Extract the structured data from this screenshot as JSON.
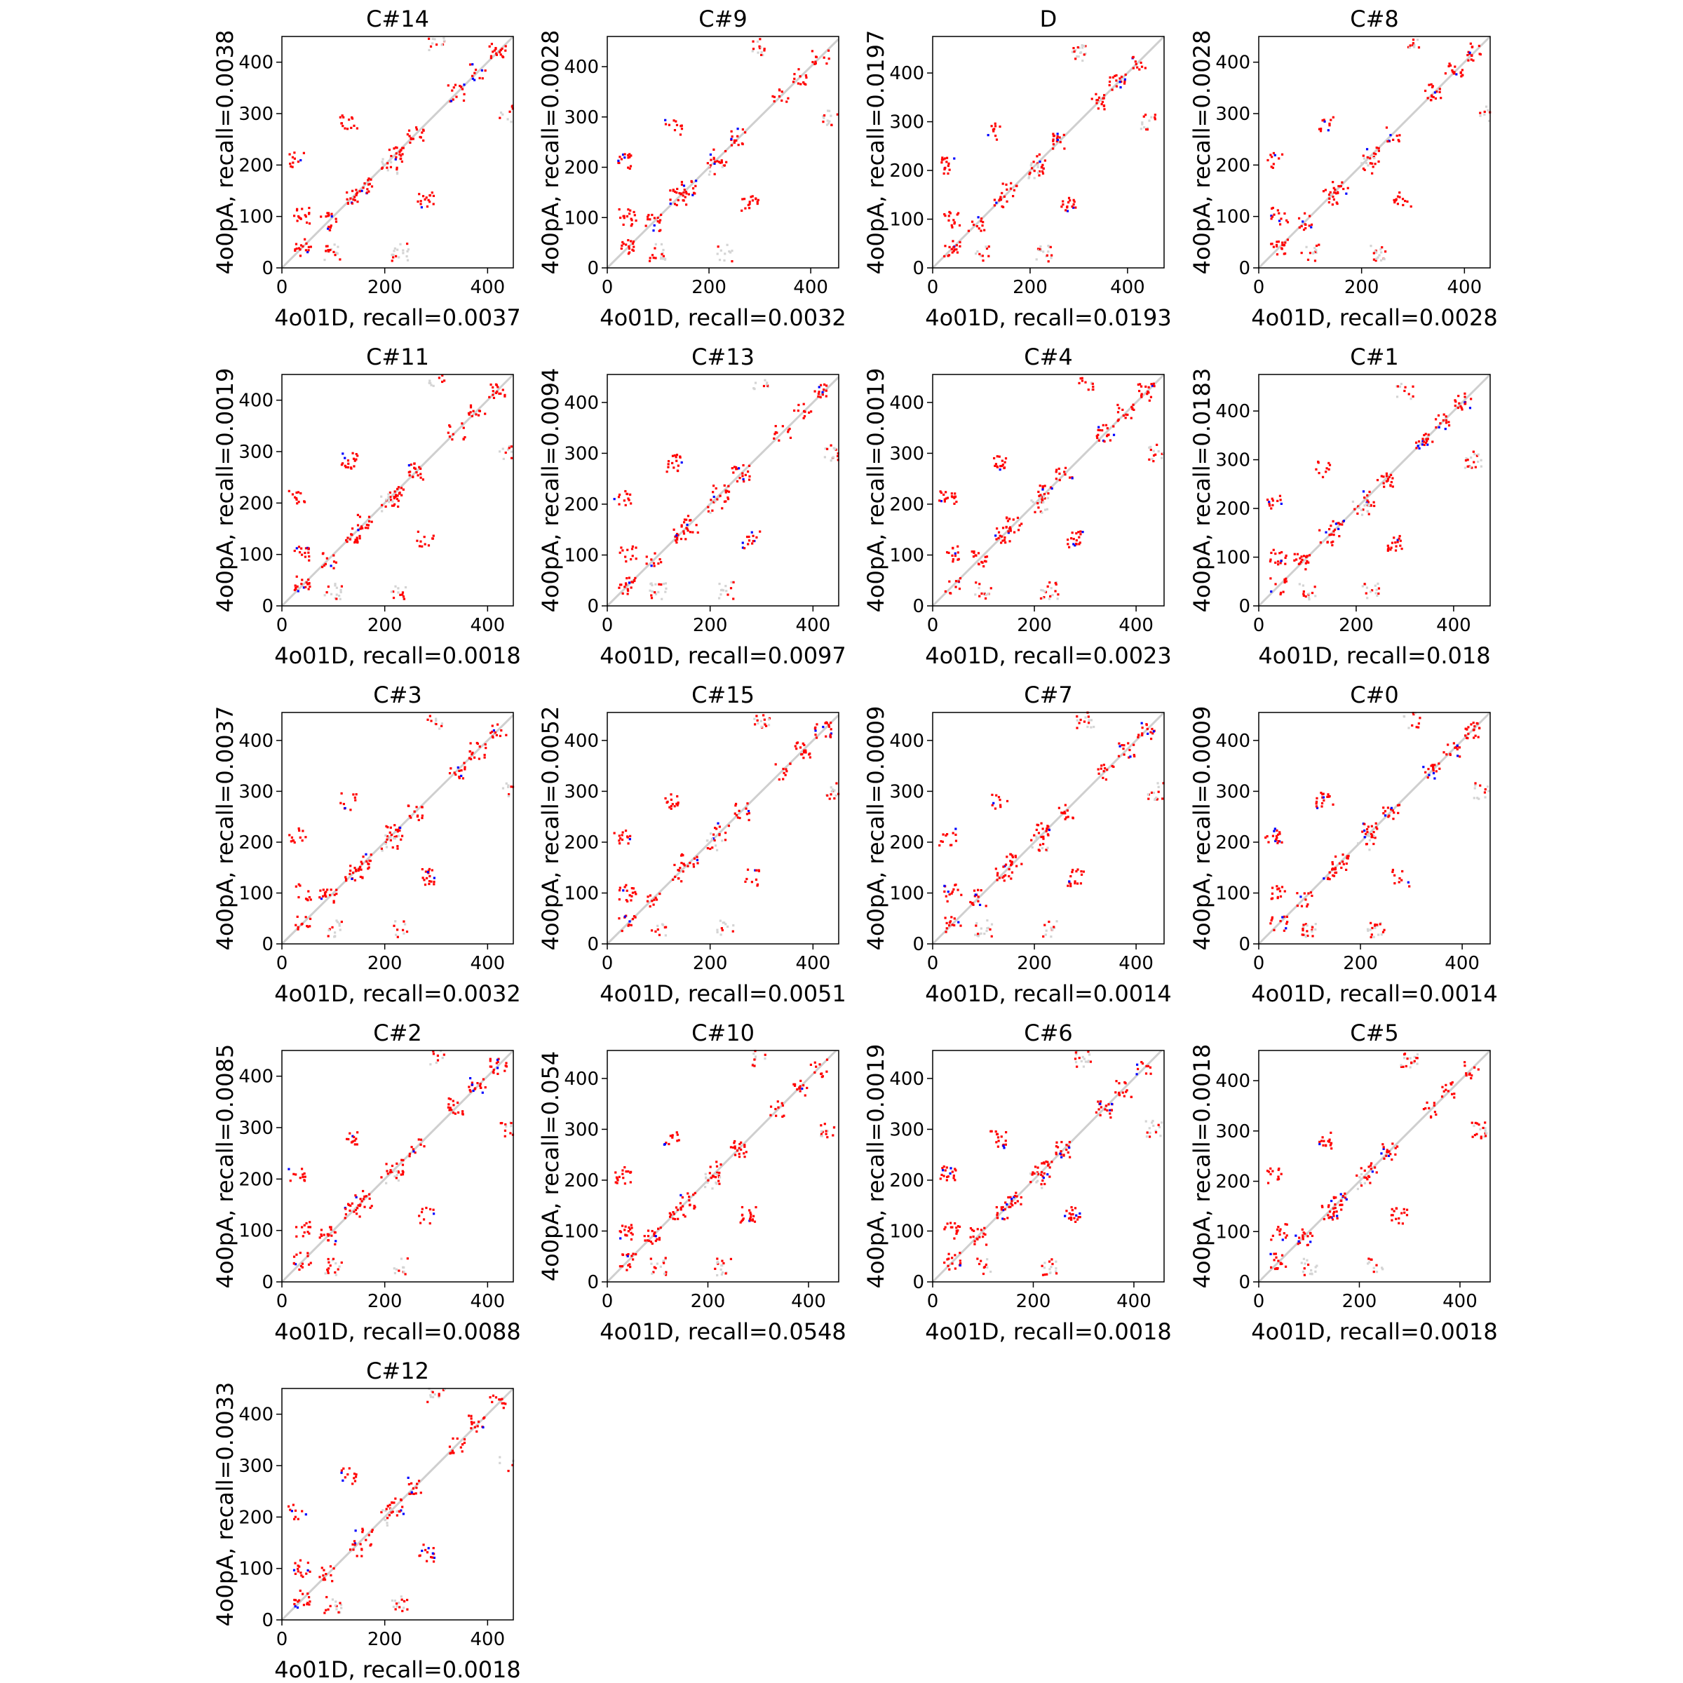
{
  "chart_data": [
    {
      "type": "scatter",
      "title": "C#14",
      "xlabel": "4o01D, recall=0.0037",
      "ylabel": "4o0pA, recall=0.0038",
      "xlim": [
        0,
        450
      ],
      "ylim": [
        0,
        450
      ],
      "xticks": [
        0,
        200,
        400
      ],
      "yticks": [
        0,
        100,
        200,
        300,
        400
      ],
      "grid": false
    },
    {
      "type": "scatter",
      "title": "C#9",
      "xlabel": "4o01D, recall=0.0032",
      "ylabel": "4o0pA, recall=0.0028",
      "xlim": [
        0,
        455
      ],
      "ylim": [
        0,
        460
      ],
      "xticks": [
        0,
        200,
        400
      ],
      "yticks": [
        0,
        100,
        200,
        300,
        400
      ],
      "grid": false
    },
    {
      "type": "scatter",
      "title": "D",
      "xlabel": "4o01D, recall=0.0193",
      "ylabel": "4o0pA, recall=0.0197",
      "xlim": [
        0,
        475
      ],
      "ylim": [
        0,
        475
      ],
      "xticks": [
        0,
        200,
        400
      ],
      "yticks": [
        0,
        100,
        200,
        300,
        400
      ],
      "grid": false
    },
    {
      "type": "scatter",
      "title": "C#8",
      "xlabel": "4o01D, recall=0.0028",
      "ylabel": "4o0pA, recall=0.0028",
      "xlim": [
        0,
        450
      ],
      "ylim": [
        0,
        450
      ],
      "xticks": [
        0,
        200,
        400
      ],
      "yticks": [
        0,
        100,
        200,
        300,
        400
      ],
      "grid": false
    },
    {
      "type": "scatter",
      "title": "C#11",
      "xlabel": "4o01D, recall=0.0018",
      "ylabel": "4o0pA, recall=0.0019",
      "xlim": [
        0,
        450
      ],
      "ylim": [
        0,
        450
      ],
      "xticks": [
        0,
        200,
        400
      ],
      "yticks": [
        0,
        100,
        200,
        300,
        400
      ],
      "grid": false
    },
    {
      "type": "scatter",
      "title": "C#13",
      "xlabel": "4o01D, recall=0.0097",
      "ylabel": "4o0pA, recall=0.0094",
      "xlim": [
        0,
        450
      ],
      "ylim": [
        0,
        455
      ],
      "xticks": [
        0,
        200,
        400
      ],
      "yticks": [
        0,
        100,
        200,
        300,
        400
      ],
      "grid": false
    },
    {
      "type": "scatter",
      "title": "C#4",
      "xlabel": "4o01D, recall=0.0023",
      "ylabel": "4o0pA, recall=0.0019",
      "xlim": [
        0,
        455
      ],
      "ylim": [
        0,
        455
      ],
      "xticks": [
        0,
        200,
        400
      ],
      "yticks": [
        0,
        100,
        200,
        300,
        400
      ],
      "grid": false
    },
    {
      "type": "scatter",
      "title": "C#1",
      "xlabel": "4o01D, recall=0.018",
      "ylabel": "4o0pA, recall=0.0183",
      "xlim": [
        0,
        475
      ],
      "ylim": [
        0,
        475
      ],
      "xticks": [
        0,
        200,
        400
      ],
      "yticks": [
        0,
        100,
        200,
        300,
        400
      ],
      "grid": false
    },
    {
      "type": "scatter",
      "title": "C#3",
      "xlabel": "4o01D, recall=0.0032",
      "ylabel": "4o0pA, recall=0.0037",
      "xlim": [
        0,
        450
      ],
      "ylim": [
        0,
        455
      ],
      "xticks": [
        0,
        200,
        400
      ],
      "yticks": [
        0,
        100,
        200,
        300,
        400
      ],
      "grid": false
    },
    {
      "type": "scatter",
      "title": "C#15",
      "xlabel": "4o01D, recall=0.0051",
      "ylabel": "4o0pA, recall=0.0052",
      "xlim": [
        0,
        450
      ],
      "ylim": [
        0,
        455
      ],
      "xticks": [
        0,
        200,
        400
      ],
      "yticks": [
        0,
        100,
        200,
        300,
        400
      ],
      "grid": false
    },
    {
      "type": "scatter",
      "title": "C#7",
      "xlabel": "4o01D, recall=0.0014",
      "ylabel": "4o0pA, recall=0.0009",
      "xlim": [
        0,
        455
      ],
      "ylim": [
        0,
        455
      ],
      "xticks": [
        0,
        200,
        400
      ],
      "yticks": [
        0,
        100,
        200,
        300,
        400
      ],
      "grid": false
    },
    {
      "type": "scatter",
      "title": "C#0",
      "xlabel": "4o01D, recall=0.0014",
      "ylabel": "4o0pA, recall=0.0009",
      "xlim": [
        0,
        455
      ],
      "ylim": [
        0,
        455
      ],
      "xticks": [
        0,
        200,
        400
      ],
      "yticks": [
        0,
        100,
        200,
        300,
        400
      ],
      "grid": false
    },
    {
      "type": "scatter",
      "title": "C#2",
      "xlabel": "4o01D, recall=0.0088",
      "ylabel": "4o0pA, recall=0.0085",
      "xlim": [
        0,
        450
      ],
      "ylim": [
        0,
        450
      ],
      "xticks": [
        0,
        200,
        400
      ],
      "yticks": [
        0,
        100,
        200,
        300,
        400
      ],
      "grid": false
    },
    {
      "type": "scatter",
      "title": "C#10",
      "xlabel": "4o01D, recall=0.0548",
      "ylabel": "4o0pA, recall=0.054",
      "xlim": [
        0,
        460
      ],
      "ylim": [
        0,
        455
      ],
      "xticks": [
        0,
        200,
        400
      ],
      "yticks": [
        0,
        100,
        200,
        300,
        400
      ],
      "grid": false
    },
    {
      "type": "scatter",
      "title": "C#6",
      "xlabel": "4o01D, recall=0.0018",
      "ylabel": "4o0pA, recall=0.0019",
      "xlim": [
        0,
        460
      ],
      "ylim": [
        0,
        455
      ],
      "xticks": [
        0,
        200,
        400
      ],
      "yticks": [
        0,
        100,
        200,
        300,
        400
      ],
      "grid": false
    },
    {
      "type": "scatter",
      "title": "C#5",
      "xlabel": "4o01D, recall=0.0018",
      "ylabel": "4o0pA, recall=0.0018",
      "xlim": [
        0,
        460
      ],
      "ylim": [
        0,
        460
      ],
      "xticks": [
        0,
        200,
        400
      ],
      "yticks": [
        0,
        100,
        200,
        300,
        400
      ],
      "grid": false
    },
    {
      "type": "scatter",
      "title": "C#12",
      "xlabel": "4o01D, recall=0.0018",
      "ylabel": "4o0pA, recall=0.0033",
      "xlim": [
        0,
        450
      ],
      "ylim": [
        0,
        450
      ],
      "xticks": [
        0,
        200,
        400
      ],
      "yticks": [
        0,
        100,
        200,
        300,
        400
      ],
      "grid": false
    }
  ],
  "colors": {
    "diagonal": "#cfcfcf",
    "reference_contacts": "#d4d4d4",
    "predicted_contacts": "#ff0000",
    "shared_contacts": "#0000ff",
    "axes": "#000000"
  }
}
